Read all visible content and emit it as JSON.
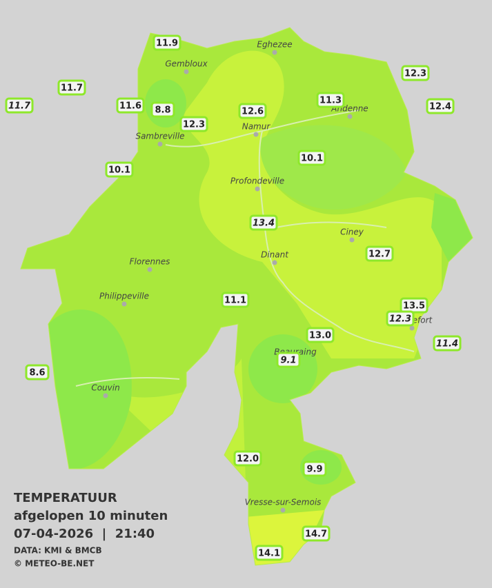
{
  "title": {
    "line1": "TEMPERATUUR",
    "line2": "afgelopen 10 minuten",
    "line3": "07-04-2026  |  21:40"
  },
  "credits": [
    "DATA: KMI & BMCB",
    "© METEO-BE.NET"
  ],
  "towns": [
    "Eghezee",
    "Gembloux",
    "Andenne",
    "Namur",
    "Sambreville",
    "Profondeville",
    "Ciney",
    "Dinant",
    "Florennes",
    "Philippeville",
    "Rochefort",
    "Beauraing",
    "Couvin",
    "Vresse-sur-Semois"
  ],
  "stations": [
    {
      "label": "11.9",
      "italic": false
    },
    {
      "label": "11.7",
      "italic": false
    },
    {
      "label": "11.7",
      "italic": true
    },
    {
      "label": "11.6",
      "italic": false
    },
    {
      "label": "8.8",
      "italic": false
    },
    {
      "label": "12.3",
      "italic": false
    },
    {
      "label": "12.6",
      "italic": false
    },
    {
      "label": "11.3",
      "italic": false
    },
    {
      "label": "12.3",
      "italic": false
    },
    {
      "label": "12.4",
      "italic": false
    },
    {
      "label": "10.1",
      "italic": false
    },
    {
      "label": "10.1",
      "italic": false
    },
    {
      "label": "13.4",
      "italic": true
    },
    {
      "label": "12.7",
      "italic": false
    },
    {
      "label": "11.1",
      "italic": false
    },
    {
      "label": "13.5",
      "italic": false
    },
    {
      "label": "12.3",
      "italic": true
    },
    {
      "label": "13.0",
      "italic": false
    },
    {
      "label": "11.4",
      "italic": true
    },
    {
      "label": "9.1",
      "italic": true
    },
    {
      "label": "8.6",
      "italic": false
    },
    {
      "label": "12.0",
      "italic": false
    },
    {
      "label": "9.9",
      "italic": false
    },
    {
      "label": "14.7",
      "italic": false
    },
    {
      "label": "14.1",
      "italic": false
    }
  ]
}
